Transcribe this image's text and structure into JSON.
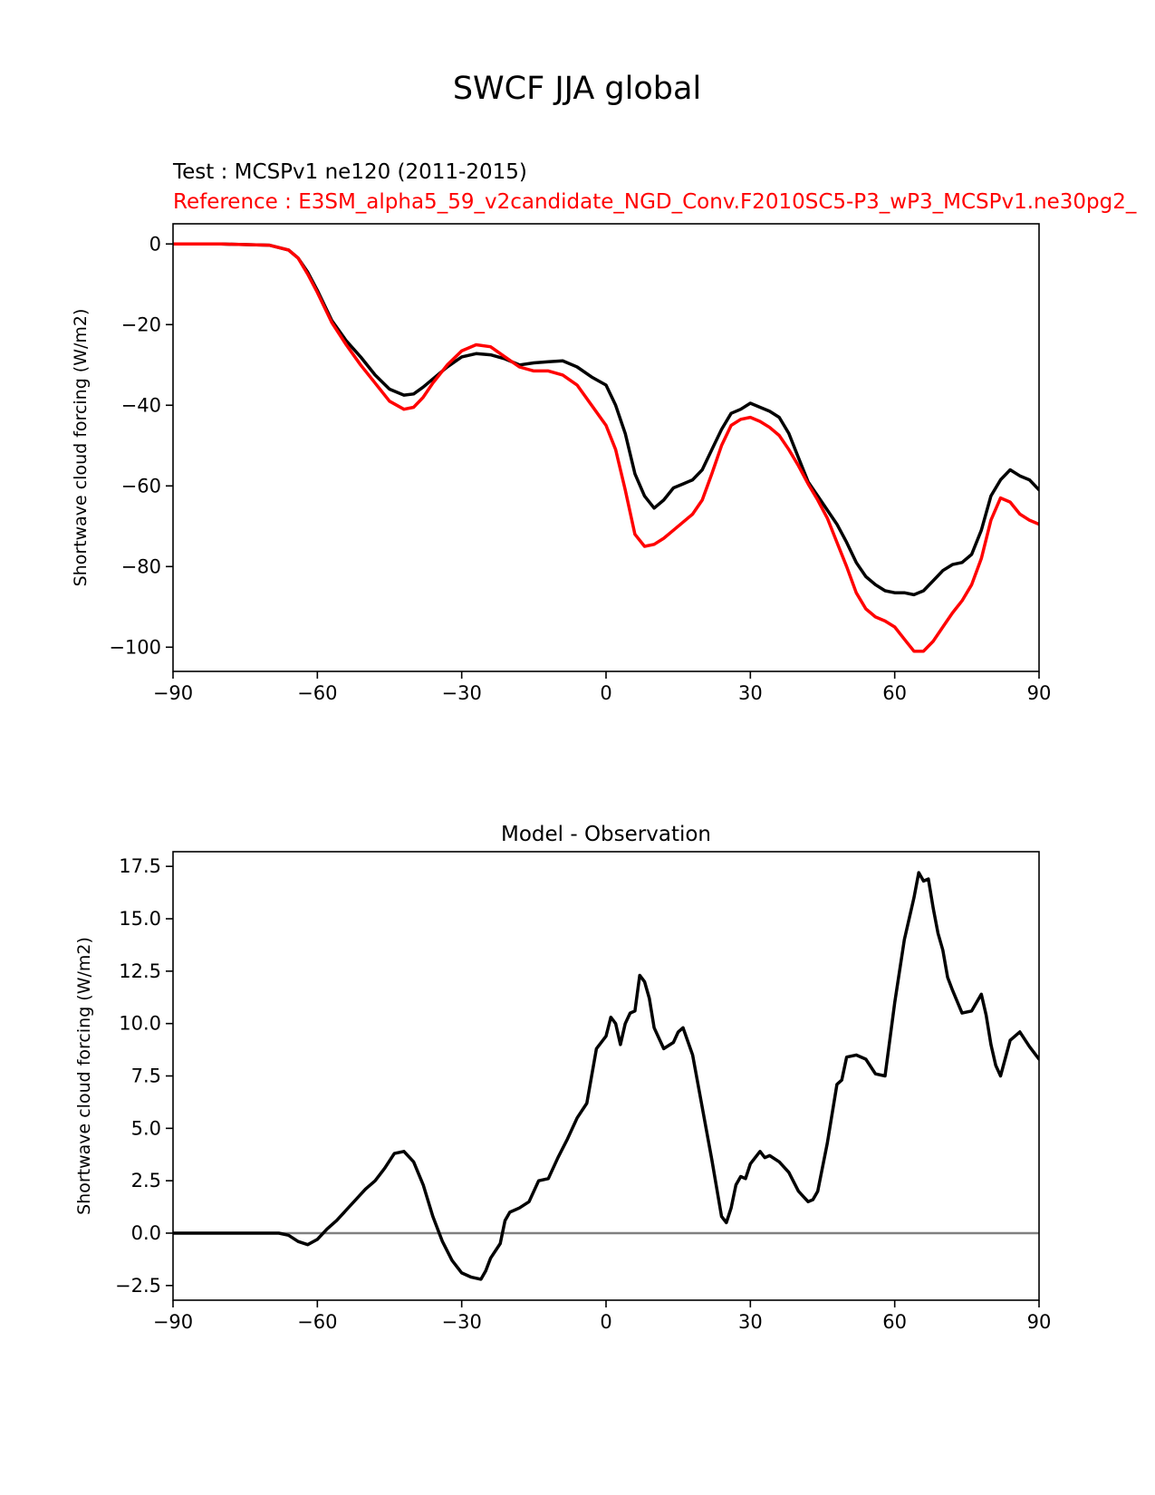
{
  "figure": {
    "title": "SWCF JJA global",
    "test_label": "Test : MCSPv1 ne120 (2011-2015)",
    "reference_label": "Reference : E3SM_alpha5_59_v2candidate_NGD_Conv.F2010SC5-P3_wP3_MCSPv1.ne30pg2_",
    "colors": {
      "test": "#000000",
      "reference": "#ff0000",
      "zero_line": "#808080",
      "axes": "#000000"
    }
  },
  "chart_data": [
    {
      "type": "line",
      "title": "",
      "xlabel": "",
      "ylabel": "Shortwave cloud forcing (W/m2)",
      "xlim": [
        -90,
        90
      ],
      "ylim": [
        -106,
        5
      ],
      "xticks": [
        -90,
        -60,
        -30,
        0,
        30,
        60,
        90
      ],
      "xtick_labels": [
        "−90",
        "−60",
        "−30",
        "0",
        "30",
        "60",
        "90"
      ],
      "yticks": [
        0,
        -20,
        -40,
        -60,
        -80,
        -100
      ],
      "ytick_labels": [
        "0",
        "−20",
        "−40",
        "−60",
        "−80",
        "−100"
      ],
      "series": [
        {
          "name": "Test : MCSPv1 ne120 (2011-2015)",
          "color": "#000000",
          "x": [
            -90,
            -80,
            -70,
            -66,
            -64,
            -62,
            -60,
            -57,
            -54,
            -51,
            -48,
            -45,
            -42,
            -40,
            -38,
            -36,
            -33,
            -30,
            -27,
            -24,
            -21,
            -18,
            -15,
            -12,
            -9,
            -6,
            -3,
            0,
            2,
            4,
            6,
            8,
            10,
            12,
            14,
            16,
            18,
            20,
            22,
            24,
            26,
            28,
            30,
            32,
            34,
            36,
            38,
            40,
            42,
            44,
            46,
            48,
            50,
            52,
            54,
            56,
            58,
            60,
            62,
            64,
            66,
            68,
            70,
            72,
            74,
            76,
            78,
            80,
            82,
            84,
            86,
            88,
            90
          ],
          "values": [
            0,
            0,
            -0.3,
            -1.5,
            -3.5,
            -7,
            -11.5,
            -19,
            -24,
            -28,
            -32.5,
            -36,
            -37.5,
            -37.2,
            -35.5,
            -33.5,
            -30.5,
            -28,
            -27.2,
            -27.5,
            -28.5,
            -30,
            -29.5,
            -29.2,
            -29,
            -30.5,
            -33,
            -35,
            -40,
            -47,
            -57,
            -62.5,
            -65.5,
            -63.5,
            -60.5,
            -59.5,
            -58.5,
            -56,
            -51,
            -46,
            -42,
            -41,
            -39.5,
            -40.5,
            -41.5,
            -43,
            -47,
            -53,
            -59,
            -62.5,
            -66,
            -69.5,
            -74,
            -79,
            -82.5,
            -84.5,
            -86,
            -86.5,
            -86.5,
            -87,
            -86,
            -83.5,
            -81,
            -79.5,
            -79,
            -77,
            -71,
            -62.5,
            -58.5,
            -56,
            -57.5,
            -58.5,
            -61
          ]
        },
        {
          "name": "Reference : E3SM_alpha5_59_v2candidate_NGD_Conv.F2010SC5-P3_wP3_MCSPv1.ne30pg2_",
          "color": "#ff0000",
          "x": [
            -90,
            -80,
            -70,
            -66,
            -64,
            -62,
            -60,
            -57,
            -54,
            -51,
            -48,
            -45,
            -42,
            -40,
            -38,
            -36,
            -33,
            -30,
            -27,
            -24,
            -21,
            -18,
            -15,
            -12,
            -9,
            -6,
            -3,
            0,
            2,
            4,
            6,
            8,
            10,
            12,
            14,
            16,
            18,
            20,
            22,
            24,
            26,
            28,
            30,
            32,
            34,
            36,
            38,
            40,
            42,
            44,
            46,
            48,
            50,
            52,
            54,
            56,
            58,
            60,
            62,
            64,
            66,
            68,
            70,
            72,
            74,
            76,
            78,
            80,
            82,
            84,
            86,
            88,
            90
          ],
          "values": [
            0,
            0,
            -0.3,
            -1.5,
            -3.5,
            -7.5,
            -12,
            -19.5,
            -25,
            -30,
            -34.5,
            -39,
            -41,
            -40.5,
            -38,
            -34.5,
            -30,
            -26.5,
            -25,
            -25.5,
            -28,
            -30.5,
            -31.5,
            -31.5,
            -32.5,
            -35,
            -40,
            -45,
            -51,
            -61,
            -72,
            -75,
            -74.5,
            -73,
            -71,
            -69,
            -67,
            -63.5,
            -57,
            -50,
            -45,
            -43.5,
            -43,
            -44,
            -45.5,
            -47.5,
            -51,
            -55,
            -59.5,
            -63.5,
            -68,
            -74,
            -80,
            -86.5,
            -90.5,
            -92.5,
            -93.5,
            -95,
            -98,
            -101,
            -101,
            -98.5,
            -95,
            -91.5,
            -88.5,
            -84.5,
            -78,
            -68.5,
            -63,
            -64,
            -67,
            -68.5,
            -69.5
          ]
        }
      ]
    },
    {
      "type": "line",
      "title": "Model - Observation",
      "xlabel": "",
      "ylabel": "Shortwave cloud forcing (W/m2)",
      "xlim": [
        -90,
        90
      ],
      "ylim": [
        -3.2,
        18.2
      ],
      "xticks": [
        -90,
        -60,
        -30,
        0,
        30,
        60,
        90
      ],
      "xtick_labels": [
        "−90",
        "−60",
        "−30",
        "0",
        "30",
        "60",
        "90"
      ],
      "yticks": [
        17.5,
        15.0,
        12.5,
        10.0,
        7.5,
        5.0,
        2.5,
        0.0,
        -2.5
      ],
      "ytick_labels": [
        "17.5",
        "15.0",
        "12.5",
        "10.0",
        "7.5",
        "5.0",
        "2.5",
        "0.0",
        "−2.5"
      ],
      "zero_line": 0,
      "series": [
        {
          "name": "Model - Observation",
          "color": "#000000",
          "x": [
            -90,
            -80,
            -70,
            -68,
            -66,
            -64,
            -62,
            -60,
            -58,
            -56,
            -54,
            -52,
            -50,
            -48,
            -46,
            -44,
            -42,
            -40,
            -38,
            -36,
            -34,
            -32,
            -30,
            -28,
            -26,
            -25,
            -24,
            -22,
            -21,
            -20,
            -18,
            -16,
            -14,
            -12,
            -10,
            -8,
            -6,
            -4,
            -2,
            0,
            1,
            2,
            3,
            4,
            5,
            6,
            7,
            8,
            9,
            10,
            12,
            14,
            15,
            16,
            18,
            20,
            22,
            24,
            25,
            26,
            27,
            28,
            29,
            30,
            31,
            32,
            33,
            34,
            36,
            38,
            40,
            42,
            43,
            44,
            46,
            48,
            49,
            50,
            52,
            54,
            56,
            58,
            60,
            62,
            64,
            65,
            66,
            67,
            68,
            69,
            70,
            71,
            72,
            74,
            76,
            78,
            79,
            80,
            81,
            82,
            84,
            86,
            88,
            90
          ],
          "values": [
            0,
            0,
            0,
            0,
            -0.1,
            -0.4,
            -0.55,
            -0.3,
            0.2,
            0.6,
            1.1,
            1.6,
            2.1,
            2.5,
            3.1,
            3.8,
            3.9,
            3.4,
            2.3,
            0.8,
            -0.4,
            -1.3,
            -1.9,
            -2.1,
            -2.2,
            -1.8,
            -1.2,
            -0.5,
            0.6,
            1,
            1.2,
            1.5,
            2.5,
            2.6,
            3.6,
            4.5,
            5.5,
            6.2,
            8.8,
            9.4,
            10.3,
            10,
            9,
            10,
            10.5,
            10.6,
            12.3,
            12,
            11.2,
            9.8,
            8.8,
            9.1,
            9.6,
            9.8,
            8.5,
            6,
            3.5,
            0.8,
            0.5,
            1.2,
            2.3,
            2.7,
            2.6,
            3.3,
            3.6,
            3.9,
            3.6,
            3.7,
            3.4,
            2.9,
            2,
            1.5,
            1.6,
            2,
            4.3,
            7.1,
            7.3,
            8.4,
            8.5,
            8.3,
            7.6,
            7.5,
            11,
            14,
            16,
            17.2,
            16.8,
            16.9,
            15.5,
            14.3,
            13.5,
            12.2,
            11.6,
            10.5,
            10.6,
            11.4,
            10.4,
            9,
            8,
            7.5,
            9.2,
            9.6,
            8.9,
            8.3
          ]
        }
      ]
    }
  ]
}
